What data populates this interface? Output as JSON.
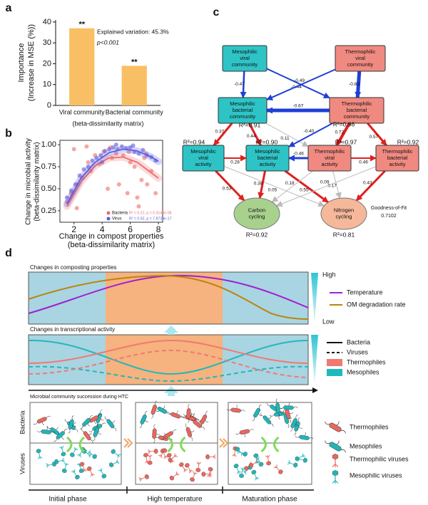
{
  "chart_data": [
    {
      "type": "bar",
      "panel_label": "a",
      "ylabel": [
        "Importance",
        "(Increase in MSE (%))"
      ],
      "xlabel": "(beta-dissimilarity matrix)",
      "categories": [
        "Viral community",
        "Bacterial community"
      ],
      "values": [
        37,
        19
      ],
      "significance": [
        "**",
        "**"
      ],
      "color": "#f9bf64",
      "ylim": [
        0,
        41
      ],
      "yticks": [
        0,
        10,
        20,
        30,
        40
      ],
      "annotations": [
        "Explained variation: 45.3%",
        "p<0.001"
      ]
    },
    {
      "type": "scatter",
      "panel_label": "b",
      "xlabel": [
        "Change in compost properties",
        "(beta-dissimilarity matrix)"
      ],
      "ylabel": [
        "Change in microbial activity",
        "(beta-dissimilarity matrix)"
      ],
      "xlim": [
        1,
        8.3
      ],
      "ylim": [
        0.12,
        1.05
      ],
      "xticks": [
        2,
        4,
        6,
        8
      ],
      "yticks": [
        0.25,
        {
          "value": 0.5,
          "label": "0.50"
        },
        0.75,
        {
          "value": 1,
          "label": "1.00"
        }
      ],
      "series": [
        {
          "name": "Bacteria",
          "color": "#ee6b6b",
          "stat": "R² = 0.21, p = 5.3148e-08",
          "x": [
            1.5,
            1.8,
            2.0,
            2.3,
            2.6,
            2.9,
            3.2,
            3.5,
            3.8,
            4.1,
            4.4,
            4.7,
            5.0,
            5.2,
            5.5,
            5.8,
            6.0,
            6.3,
            6.5,
            6.8,
            7.0,
            7.2,
            7.5,
            7.8,
            4.6,
            5.9,
            6.6,
            3.0,
            2.2,
            7.1
          ],
          "values": [
            0.35,
            0.45,
            0.95,
            0.55,
            0.62,
            0.98,
            0.7,
            0.88,
            0.78,
            0.92,
            0.5,
            0.85,
            0.9,
            0.55,
            0.88,
            0.45,
            0.8,
            0.75,
            0.4,
            0.6,
            0.85,
            0.55,
            0.7,
            0.45,
            0.97,
            0.92,
            0.3,
            0.8,
            0.28,
            0.9
          ],
          "fit": {
            "x": [
              1.5,
              2.5,
              3.5,
              4.5,
              5.5,
              6.5,
              7.5,
              8
            ],
            "values": [
              0.3,
              0.58,
              0.76,
              0.85,
              0.86,
              0.8,
              0.68,
              0.62
            ]
          }
        },
        {
          "name": "Virus",
          "color": "#5a5ae0",
          "stat": "R² = 0.52, p = 7.8739e-17",
          "x": [
            1.5,
            1.8,
            2.1,
            2.4,
            2.7,
            3.0,
            3.3,
            3.6,
            3.9,
            4.2,
            4.5,
            4.8,
            5.1,
            5.4,
            5.7,
            6.0,
            6.3,
            6.6,
            6.9,
            7.2,
            7.5,
            7.8,
            5.0,
            6.2,
            4.0
          ],
          "values": [
            0.4,
            0.48,
            0.55,
            0.65,
            0.72,
            0.75,
            0.82,
            0.85,
            0.88,
            0.93,
            0.95,
            0.97,
            0.95,
            0.98,
            0.96,
            0.97,
            0.92,
            0.9,
            0.94,
            0.88,
            0.86,
            0.82,
            1.0,
            0.99,
            0.8
          ],
          "fit": {
            "x": [
              1.5,
              2.5,
              3.5,
              4.5,
              5.5,
              6.5,
              7.5,
              8
            ],
            "values": [
              0.33,
              0.62,
              0.8,
              0.91,
              0.95,
              0.93,
              0.86,
              0.81
            ]
          }
        }
      ]
    }
  ],
  "diagram": {
    "panel_label": "c",
    "nodes": [
      {
        "lines": [
          "Mesophilic",
          "viral",
          "community"
        ],
        "color": "#2ec4c6"
      },
      {
        "lines": [
          "Thermophilic",
          "viral",
          "community"
        ],
        "color": "#f08a80"
      },
      {
        "lines": [
          "Mesophilic",
          "bacterial",
          "community"
        ],
        "color": "#2ec4c6",
        "r2": "R²=0.91"
      },
      {
        "lines": [
          "Thermophilic",
          "bacterial",
          "community"
        ],
        "color": "#f08a80",
        "r2": "R²=0.96"
      },
      {
        "lines": [
          "Mesophilic",
          "viral",
          "activity"
        ],
        "color": "#2ec4c6",
        "r2": "R²=0.94"
      },
      {
        "lines": [
          "Mesophilic",
          "bacterial",
          "activity"
        ],
        "color": "#2ec4c6",
        "r2": "R²=0.90"
      },
      {
        "lines": [
          "Thermophilic",
          "viral",
          "activity"
        ],
        "color": "#f08a80",
        "r2": "R²=0.97"
      },
      {
        "lines": [
          "Thermophilic",
          "bacterial",
          "activity"
        ],
        "color": "#f08a80",
        "r2": "R²=0.92"
      },
      {
        "lines": [
          "Carbon",
          "cycling"
        ],
        "color": "#a9d18e",
        "r2": "R²=0.92"
      },
      {
        "lines": [
          "Nitrogen",
          "cycling"
        ],
        "color": "#f6b89a",
        "r2": "R²=0.81"
      }
    ],
    "edges": [
      {
        "label": "-0.47",
        "color": "#1f3fd6"
      },
      {
        "label": "-0.44",
        "color": "#1f3fd6"
      },
      {
        "label": "-0.49",
        "color": "#1f3fd6"
      },
      {
        "label": "-0.83",
        "color": "#1f3fd6"
      },
      {
        "label": "-0.67",
        "color": "#1f3fd6"
      },
      {
        "label": "0.37",
        "color": "#e02020"
      },
      {
        "label": "0.44",
        "color": "#e02020"
      },
      {
        "label": "0.11",
        "color": "#bbbbbb"
      },
      {
        "label": "-0.40",
        "color": "#1f3fd6"
      },
      {
        "label": "0.72",
        "color": "#e02020"
      },
      {
        "label": "0.57",
        "color": "#e02020"
      },
      {
        "label": "0.28",
        "color": "#e02020"
      },
      {
        "label": "-0.46",
        "color": "#1f3fd6"
      },
      {
        "label": "0.46",
        "color": "#e02020"
      },
      {
        "label": "0.05",
        "color": "#bbbbbb"
      },
      {
        "label": "0.38",
        "color": "#e02020"
      },
      {
        "label": "0.55",
        "color": "#e02020"
      },
      {
        "label": "0.18",
        "color": "#bbbbbb"
      },
      {
        "label": "0.17",
        "color": "#bbbbbb"
      },
      {
        "label": "0.09",
        "color": "#bbbbbb"
      },
      {
        "label": "0.43",
        "color": "#e02020"
      },
      {
        "label": "0.53",
        "color": "#e02020"
      }
    ],
    "fit_title": "Goodness-of-Fit",
    "fit_value": "0.7102"
  },
  "schematic": {
    "panel_label": "d",
    "properties": {
      "title": "Changes in composting properties",
      "legend": [
        "Temperature",
        "OM degradation rate"
      ],
      "high": "High",
      "low": "Low"
    },
    "activity": {
      "title": "Changes in transcriptional activity",
      "legend": [
        "Bacteria",
        "Viruses",
        "Thermophiles",
        "Mesophiles"
      ]
    },
    "succession": {
      "title": "Microbial community succession during HTC",
      "rows": [
        "Bacteria",
        "Viruses"
      ],
      "phases": [
        "Initial phase",
        "High temperature",
        "Maturation phase"
      ],
      "legend": [
        "Thermophiles",
        "Mesophiles",
        "Thermophilic viruses",
        "Mesophilic viruses"
      ]
    }
  }
}
